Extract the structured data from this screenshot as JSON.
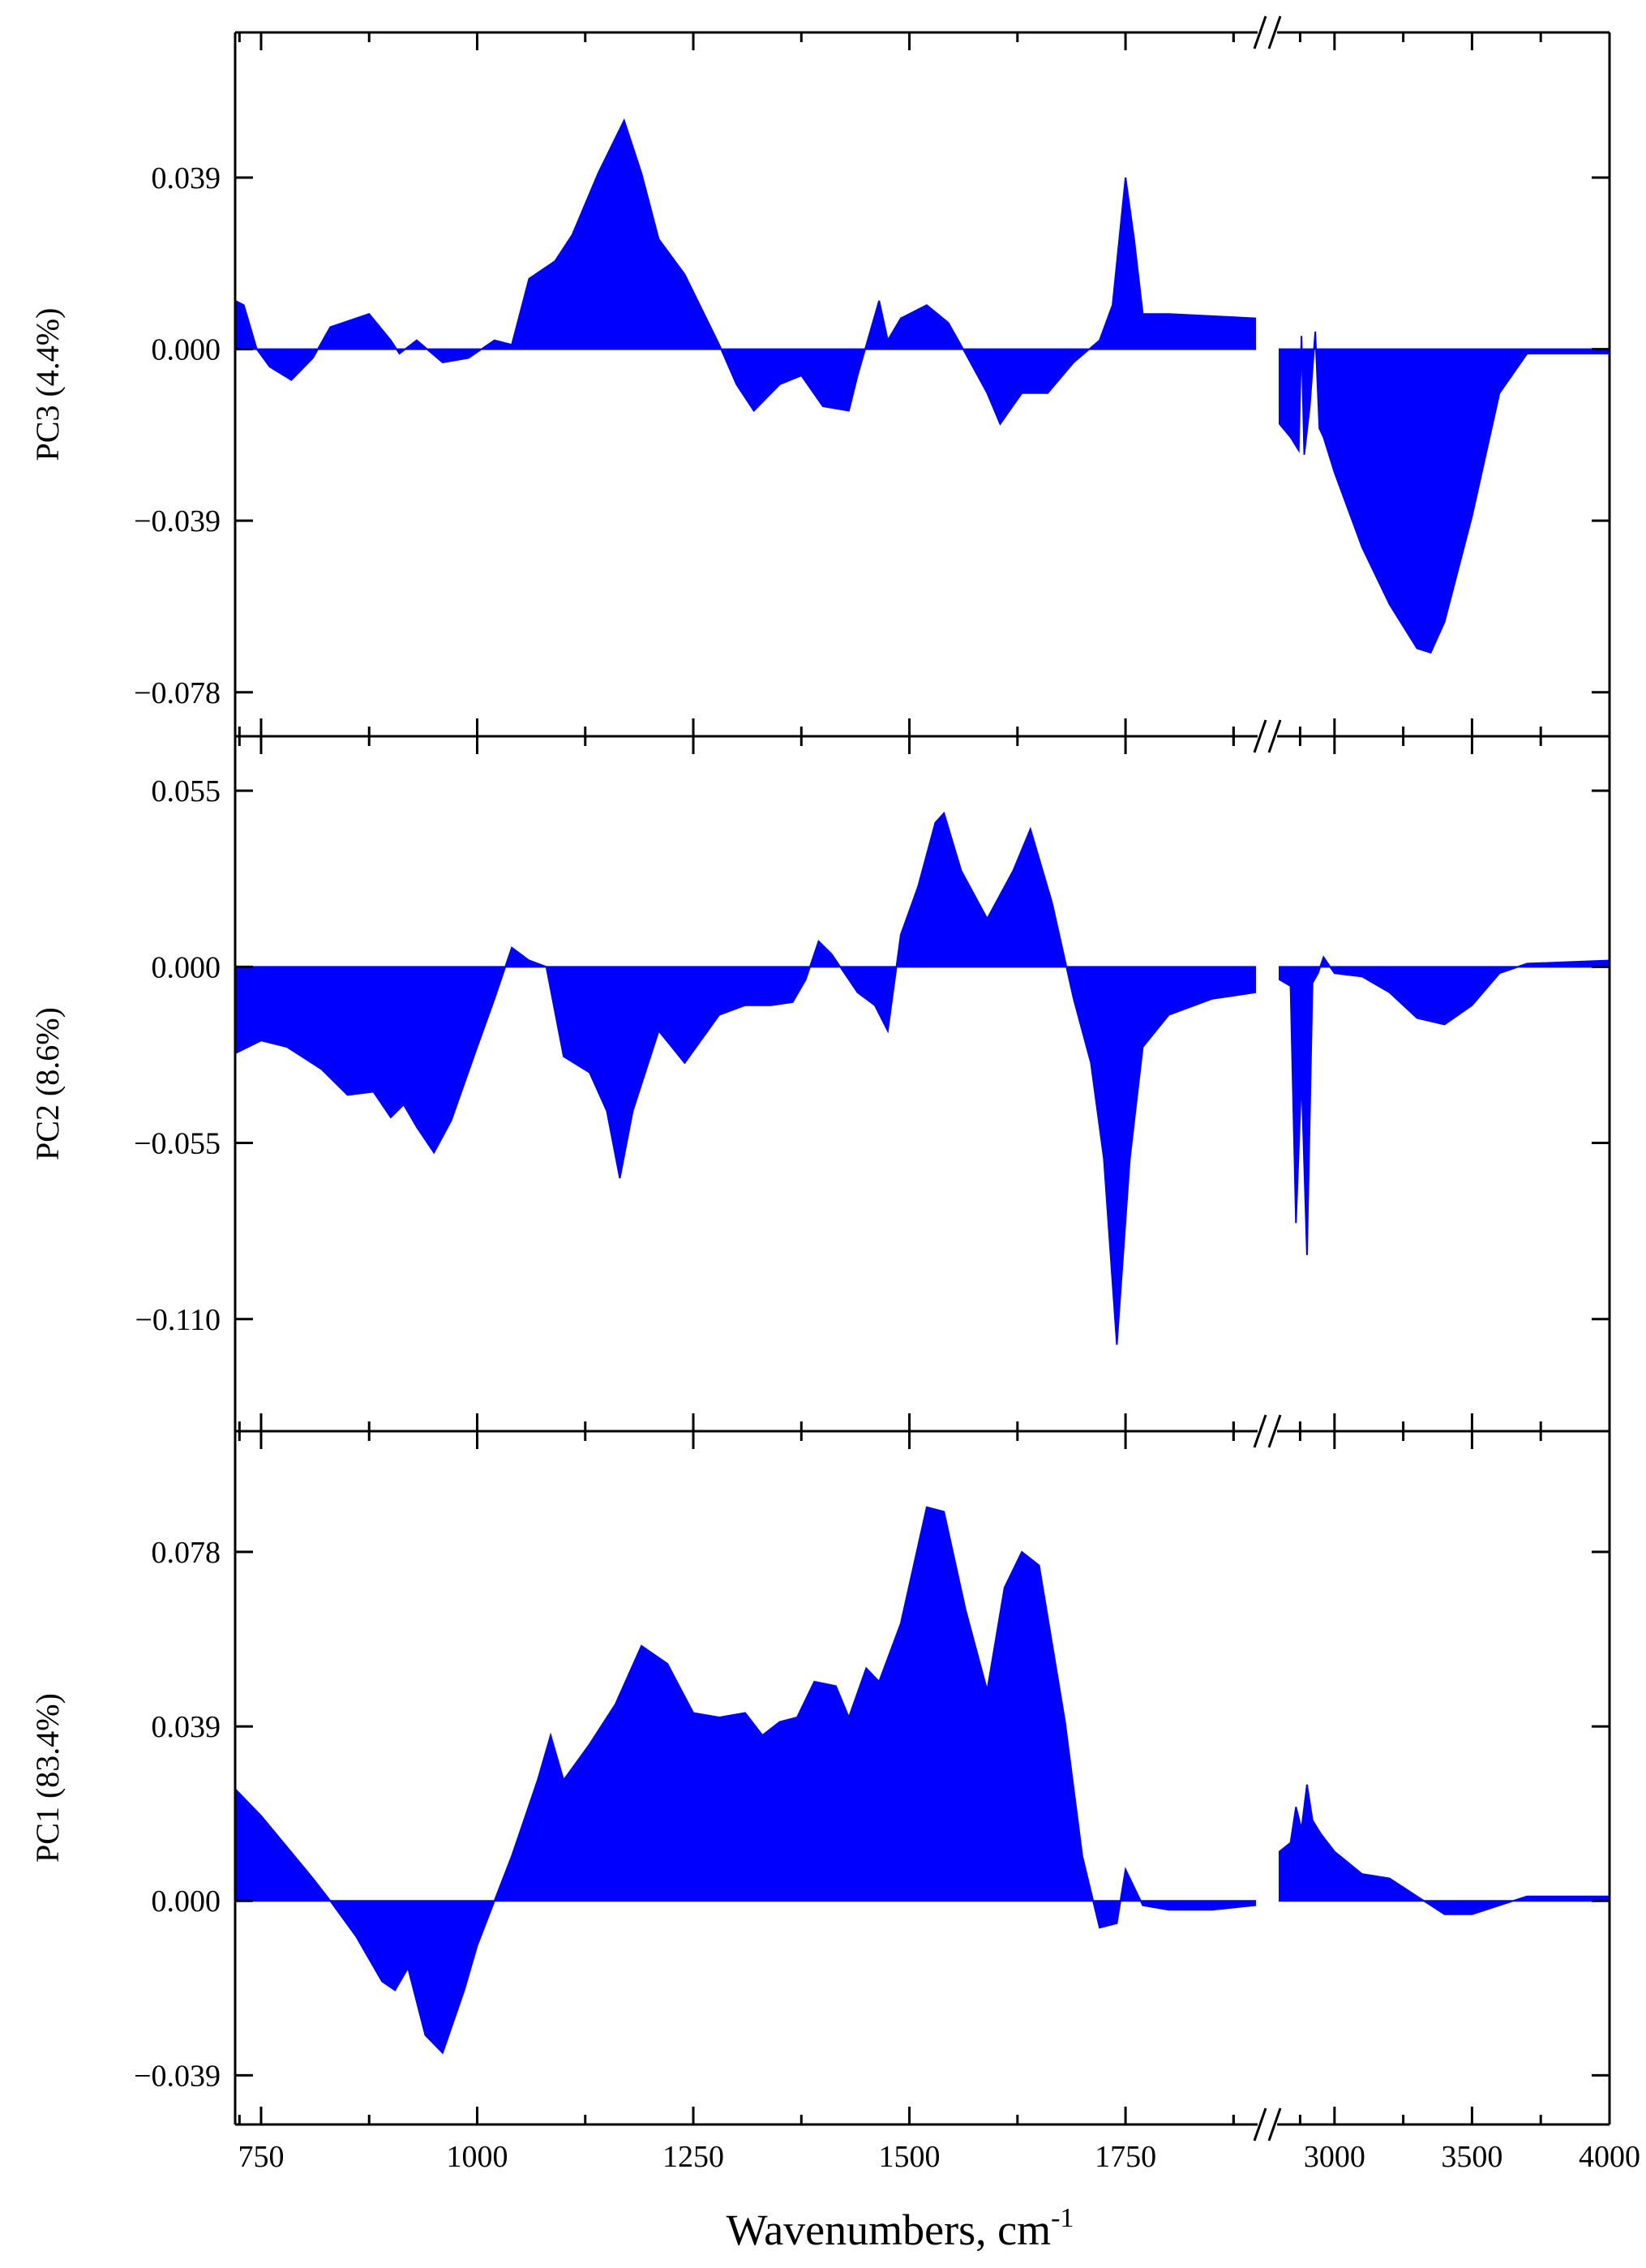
{
  "chart_data": {
    "type": "area",
    "x_axis": {
      "label": "Wavenumbers, cm",
      "label_superscript": "-1",
      "broken": true,
      "segments": [
        {
          "range": [
            720,
            1900
          ],
          "ticks": [
            750,
            1000,
            1250,
            1500,
            1750
          ],
          "tick_labels": [
            "750",
            "1000",
            "1250",
            "1500",
            "1750"
          ]
        },
        {
          "range": [
            2800,
            4000
          ],
          "ticks": [
            3000,
            3500,
            4000
          ],
          "tick_labels": [
            "3000",
            "3500",
            "4000"
          ]
        }
      ]
    },
    "panels": [
      {
        "name": "PC3",
        "ylabel": "PC3 (4.4%)",
        "ylim": [
          -0.088,
          0.072
        ],
        "yticks": [
          0.039,
          0.0,
          -0.039,
          -0.078
        ],
        "ytick_labels": [
          "0.039",
          "0.000",
          "−0.039",
          "−0.078"
        ],
        "color": "#0000ff",
        "series_low": [
          [
            720,
            0.011
          ],
          [
            730,
            0.01
          ],
          [
            745,
            0.0
          ],
          [
            760,
            -0.004
          ],
          [
            785,
            -0.007
          ],
          [
            810,
            -0.002
          ],
          [
            830,
            0.005
          ],
          [
            860,
            0.007
          ],
          [
            875,
            0.008
          ],
          [
            900,
            0.002
          ],
          [
            910,
            -0.001
          ],
          [
            930,
            0.002
          ],
          [
            960,
            -0.003
          ],
          [
            990,
            -0.002
          ],
          [
            1020,
            0.002
          ],
          [
            1040,
            0.001
          ],
          [
            1060,
            0.016
          ],
          [
            1090,
            0.02
          ],
          [
            1110,
            0.026
          ],
          [
            1140,
            0.04
          ],
          [
            1170,
            0.052
          ],
          [
            1190,
            0.04
          ],
          [
            1210,
            0.025
          ],
          [
            1240,
            0.017
          ],
          [
            1280,
            0.001
          ],
          [
            1300,
            -0.008
          ],
          [
            1320,
            -0.014
          ],
          [
            1350,
            -0.008
          ],
          [
            1375,
            -0.006
          ],
          [
            1400,
            -0.013
          ],
          [
            1430,
            -0.014
          ],
          [
            1440,
            -0.006
          ],
          [
            1465,
            0.011
          ],
          [
            1475,
            0.002
          ],
          [
            1490,
            0.007
          ],
          [
            1520,
            0.01
          ],
          [
            1545,
            0.006
          ],
          [
            1565,
            -0.001
          ],
          [
            1590,
            -0.01
          ],
          [
            1605,
            -0.017
          ],
          [
            1630,
            -0.01
          ],
          [
            1660,
            -0.01
          ],
          [
            1690,
            -0.003
          ],
          [
            1720,
            0.002
          ],
          [
            1735,
            0.01
          ],
          [
            1750,
            0.039
          ],
          [
            1760,
            0.025
          ],
          [
            1770,
            0.008
          ],
          [
            1800,
            0.008
          ],
          [
            1900,
            0.007
          ]
        ],
        "series_high": [
          [
            2800,
            -0.017
          ],
          [
            2840,
            -0.02
          ],
          [
            2870,
            -0.023
          ],
          [
            2880,
            0.003
          ],
          [
            2890,
            -0.024
          ],
          [
            2910,
            -0.013
          ],
          [
            2930,
            0.004
          ],
          [
            2945,
            -0.018
          ],
          [
            2960,
            -0.02
          ],
          [
            3000,
            -0.028
          ],
          [
            3100,
            -0.045
          ],
          [
            3200,
            -0.058
          ],
          [
            3300,
            -0.068
          ],
          [
            3350,
            -0.069
          ],
          [
            3400,
            -0.062
          ],
          [
            3500,
            -0.038
          ],
          [
            3600,
            -0.01
          ],
          [
            3700,
            -0.001
          ],
          [
            3800,
            -0.001
          ],
          [
            4000,
            -0.001
          ]
        ]
      },
      {
        "name": "PC2",
        "ylabel": "PC2 (8.6%)",
        "ylim": [
          -0.145,
          0.072
        ],
        "yticks": [
          0.055,
          0.0,
          -0.055,
          -0.11
        ],
        "ytick_labels": [
          "0.055",
          "0.000",
          "−0.055",
          "−0.110"
        ],
        "color": "#0000ff",
        "series_low": [
          [
            720,
            -0.027
          ],
          [
            750,
            -0.023
          ],
          [
            780,
            -0.025
          ],
          [
            820,
            -0.032
          ],
          [
            850,
            -0.04
          ],
          [
            880,
            -0.039
          ],
          [
            900,
            -0.047
          ],
          [
            915,
            -0.043
          ],
          [
            930,
            -0.05
          ],
          [
            950,
            -0.058
          ],
          [
            970,
            -0.048
          ],
          [
            1000,
            -0.025
          ],
          [
            1020,
            -0.01
          ],
          [
            1040,
            0.006
          ],
          [
            1060,
            0.002
          ],
          [
            1080,
            0.0
          ],
          [
            1100,
            -0.028
          ],
          [
            1130,
            -0.033
          ],
          [
            1150,
            -0.045
          ],
          [
            1165,
            -0.066
          ],
          [
            1180,
            -0.045
          ],
          [
            1210,
            -0.02
          ],
          [
            1240,
            -0.03
          ],
          [
            1280,
            -0.015
          ],
          [
            1310,
            -0.012
          ],
          [
            1340,
            -0.012
          ],
          [
            1365,
            -0.011
          ],
          [
            1380,
            -0.004
          ],
          [
            1395,
            0.008
          ],
          [
            1410,
            0.004
          ],
          [
            1440,
            -0.008
          ],
          [
            1460,
            -0.012
          ],
          [
            1475,
            -0.02
          ],
          [
            1490,
            0.01
          ],
          [
            1510,
            0.025
          ],
          [
            1530,
            0.045
          ],
          [
            1540,
            0.048
          ],
          [
            1560,
            0.03
          ],
          [
            1590,
            0.015
          ],
          [
            1620,
            0.03
          ],
          [
            1640,
            0.043
          ],
          [
            1665,
            0.02
          ],
          [
            1690,
            -0.01
          ],
          [
            1710,
            -0.03
          ],
          [
            1725,
            -0.06
          ],
          [
            1740,
            -0.118
          ],
          [
            1755,
            -0.06
          ],
          [
            1770,
            -0.025
          ],
          [
            1800,
            -0.015
          ],
          [
            1850,
            -0.01
          ],
          [
            1900,
            -0.008
          ]
        ],
        "series_high": [
          [
            2800,
            -0.004
          ],
          [
            2840,
            -0.006
          ],
          [
            2860,
            -0.08
          ],
          [
            2880,
            -0.034
          ],
          [
            2900,
            -0.09
          ],
          [
            2920,
            -0.005
          ],
          [
            2940,
            -0.002
          ],
          [
            2960,
            0.003
          ],
          [
            3000,
            -0.002
          ],
          [
            3100,
            -0.003
          ],
          [
            3200,
            -0.008
          ],
          [
            3300,
            -0.016
          ],
          [
            3400,
            -0.018
          ],
          [
            3500,
            -0.012
          ],
          [
            3600,
            -0.002
          ],
          [
            3700,
            0.001
          ],
          [
            4000,
            0.002
          ]
        ]
      },
      {
        "name": "PC1",
        "ylabel": "PC1 (83.4%)",
        "ylim": [
          -0.05,
          0.105
        ],
        "yticks": [
          0.078,
          0.039,
          0.0,
          -0.039
        ],
        "ytick_labels": [
          "0.078",
          "0.039",
          "0.000",
          "−0.039"
        ],
        "color": "#0000ff",
        "series_low": [
          [
            720,
            0.025
          ],
          [
            750,
            0.019
          ],
          [
            780,
            0.012
          ],
          [
            810,
            0.005
          ],
          [
            830,
            0.0
          ],
          [
            860,
            -0.008
          ],
          [
            890,
            -0.018
          ],
          [
            905,
            -0.02
          ],
          [
            920,
            -0.015
          ],
          [
            940,
            -0.03
          ],
          [
            960,
            -0.034
          ],
          [
            985,
            -0.02
          ],
          [
            1000,
            -0.01
          ],
          [
            1020,
            0.0
          ],
          [
            1040,
            0.01
          ],
          [
            1070,
            0.027
          ],
          [
            1085,
            0.037
          ],
          [
            1100,
            0.027
          ],
          [
            1130,
            0.035
          ],
          [
            1160,
            0.044
          ],
          [
            1190,
            0.057
          ],
          [
            1220,
            0.053
          ],
          [
            1250,
            0.042
          ],
          [
            1280,
            0.041
          ],
          [
            1310,
            0.042
          ],
          [
            1330,
            0.037
          ],
          [
            1350,
            0.04
          ],
          [
            1370,
            0.041
          ],
          [
            1390,
            0.049
          ],
          [
            1415,
            0.048
          ],
          [
            1430,
            0.041
          ],
          [
            1450,
            0.052
          ],
          [
            1465,
            0.049
          ],
          [
            1490,
            0.062
          ],
          [
            1520,
            0.088
          ],
          [
            1540,
            0.087
          ],
          [
            1565,
            0.065
          ],
          [
            1590,
            0.047
          ],
          [
            1610,
            0.07
          ],
          [
            1630,
            0.078
          ],
          [
            1650,
            0.075
          ],
          [
            1680,
            0.04
          ],
          [
            1700,
            0.01
          ],
          [
            1720,
            -0.006
          ],
          [
            1740,
            -0.005
          ],
          [
            1750,
            0.007
          ],
          [
            1770,
            -0.001
          ],
          [
            1800,
            -0.002
          ],
          [
            1850,
            -0.002
          ],
          [
            1900,
            -0.001
          ]
        ],
        "series_high": [
          [
            2800,
            0.011
          ],
          [
            2840,
            0.013
          ],
          [
            2860,
            0.021
          ],
          [
            2880,
            0.016
          ],
          [
            2900,
            0.026
          ],
          [
            2920,
            0.018
          ],
          [
            2950,
            0.015
          ],
          [
            3000,
            0.011
          ],
          [
            3100,
            0.006
          ],
          [
            3200,
            0.005
          ],
          [
            3300,
            0.001
          ],
          [
            3400,
            -0.003
          ],
          [
            3500,
            -0.003
          ],
          [
            3600,
            -0.001
          ],
          [
            3700,
            0.001
          ],
          [
            4000,
            0.001
          ]
        ]
      }
    ]
  }
}
